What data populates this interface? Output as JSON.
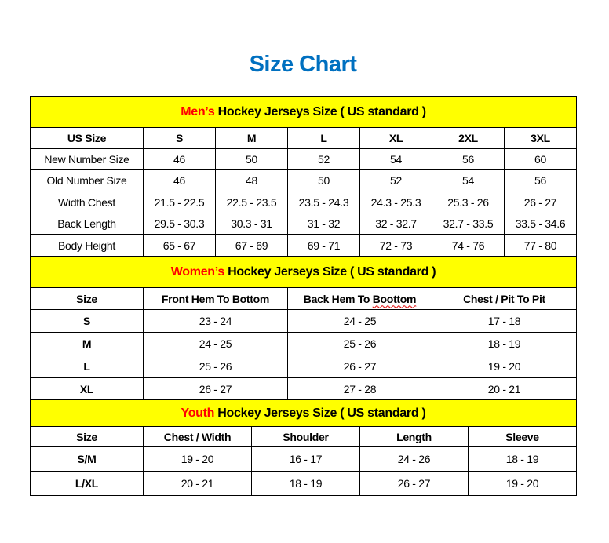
{
  "title": "Size Chart",
  "colors": {
    "title": "#0070C0",
    "section_header_bg": "#FFFF00",
    "section_highlight": "#FF0000"
  },
  "mens": {
    "header_highlight": "Men’s",
    "header_rest": " Hockey Jerseys Size ( US standard )",
    "columns": [
      "US Size",
      "S",
      "M",
      "L",
      "XL",
      "2XL",
      "3XL"
    ],
    "rows": [
      [
        "New Number Size",
        "46",
        "50",
        "52",
        "54",
        "56",
        "60"
      ],
      [
        "Old Number Size",
        "46",
        "48",
        "50",
        "52",
        "54",
        "56"
      ],
      [
        "Width Chest",
        "21.5 - 22.5",
        "22.5 - 23.5",
        "23.5 - 24.3",
        "24.3 - 25.3",
        "25.3 - 26",
        "26 - 27"
      ],
      [
        "Back Length",
        "29.5 - 30.3",
        "30.3 - 31",
        "31 - 32",
        "32 - 32.7",
        "32.7 - 33.5",
        "33.5 - 34.6"
      ],
      [
        "Body Height",
        "65 - 67",
        "67 - 69",
        "69 - 71",
        "72 - 73",
        "74 - 76",
        "77 - 80"
      ]
    ]
  },
  "womens": {
    "header_highlight": "Women’s",
    "header_rest": " Hockey Jerseys Size ( US standard )",
    "columns": [
      "Size",
      "Front Hem To Bottom",
      "Back Hem To Boottom",
      "Chest / Pit To Pit"
    ],
    "rows": [
      [
        "S",
        "23 - 24",
        "24 - 25",
        "17 - 18"
      ],
      [
        "M",
        "24 - 25",
        "25 - 26",
        "18 - 19"
      ],
      [
        "L",
        "25 - 26",
        "26 - 27",
        "19 - 20"
      ],
      [
        "XL",
        "26 - 27",
        "27 - 28",
        "20 - 21"
      ]
    ]
  },
  "youth": {
    "header_highlight": "Youth",
    "header_rest": " Hockey Jerseys Size ( US standard )",
    "columns": [
      "Size",
      "Chest / Width",
      "Shoulder",
      "Length",
      "Sleeve"
    ],
    "rows": [
      [
        "S/M",
        "19 - 20",
        "16 - 17",
        "24 - 26",
        "18 - 19"
      ],
      [
        "L/XL",
        "20 - 21",
        "18 - 19",
        "26 - 27",
        "19 - 20"
      ]
    ]
  }
}
